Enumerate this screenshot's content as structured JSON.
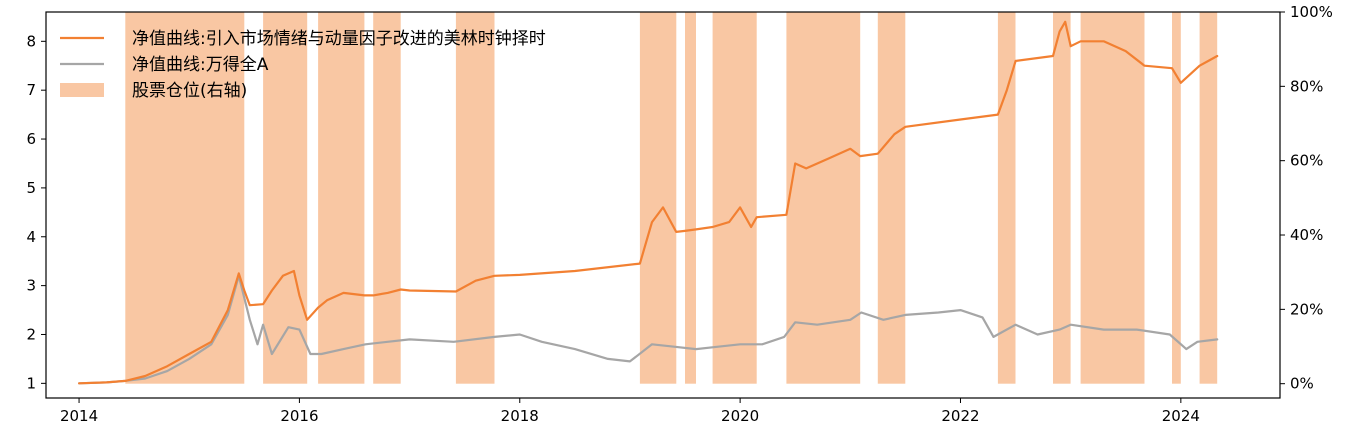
{
  "chart_data": {
    "type": "line",
    "title": "",
    "xlabel": "",
    "ylabel": "",
    "x_range": [
      2013.7,
      2024.9
    ],
    "ylim_left": [
      0.7,
      8.6
    ],
    "ylim_right": [
      -0.0385,
      1.0
    ],
    "x_ticks": [
      {
        "value": 2014,
        "label": "2014"
      },
      {
        "value": 2016,
        "label": "2016"
      },
      {
        "value": 2018,
        "label": "2018"
      },
      {
        "value": 2020,
        "label": "2020"
      },
      {
        "value": 2022,
        "label": "2022"
      },
      {
        "value": 2024,
        "label": "2024"
      }
    ],
    "y_left_ticks": [
      {
        "value": 1,
        "label": "1"
      },
      {
        "value": 2,
        "label": "2"
      },
      {
        "value": 3,
        "label": "3"
      },
      {
        "value": 4,
        "label": "4"
      },
      {
        "value": 5,
        "label": "5"
      },
      {
        "value": 6,
        "label": "6"
      },
      {
        "value": 7,
        "label": "7"
      },
      {
        "value": 8,
        "label": "8"
      }
    ],
    "y_right_ticks": [
      {
        "value": 0,
        "label": "0%"
      },
      {
        "value": 0.2,
        "label": "20%"
      },
      {
        "value": 0.4,
        "label": "40%"
      },
      {
        "value": 0.6,
        "label": "60%"
      },
      {
        "value": 0.8,
        "label": "80%"
      },
      {
        "value": 1.0,
        "label": "100%"
      }
    ],
    "legend": {
      "placement": "top-left",
      "entries": [
        {
          "label": "净值曲线:引入市场情绪与动量因子改进的美林时钟择时",
          "color": "#f28032",
          "kind": "line"
        },
        {
          "label": "净值曲线:万得全A",
          "color": "#a6a6a6",
          "kind": "line"
        },
        {
          "label": "股票仓位(右轴)",
          "color": "#f9c7a3",
          "kind": "patch"
        }
      ]
    },
    "position_bar_color": "#f9c7a3",
    "position_bars": [
      {
        "start": 2014.42,
        "end": 2015.5,
        "value": 1.0
      },
      {
        "start": 2015.67,
        "end": 2016.07,
        "value": 1.0
      },
      {
        "start": 2016.17,
        "end": 2016.59,
        "value": 1.0
      },
      {
        "start": 2016.67,
        "end": 2016.92,
        "value": 1.0
      },
      {
        "start": 2017.42,
        "end": 2017.77,
        "value": 1.0
      },
      {
        "start": 2019.09,
        "end": 2019.42,
        "value": 1.0
      },
      {
        "start": 2019.5,
        "end": 2019.6,
        "value": 1.0
      },
      {
        "start": 2019.75,
        "end": 2020.15,
        "value": 1.0
      },
      {
        "start": 2020.42,
        "end": 2021.09,
        "value": 1.0
      },
      {
        "start": 2021.25,
        "end": 2021.5,
        "value": 1.0
      },
      {
        "start": 2022.34,
        "end": 2022.5,
        "value": 1.0
      },
      {
        "start": 2022.84,
        "end": 2023.0,
        "value": 1.0
      },
      {
        "start": 2023.09,
        "end": 2023.67,
        "value": 1.0
      },
      {
        "start": 2023.92,
        "end": 2024.0,
        "value": 1.0
      },
      {
        "start": 2024.17,
        "end": 2024.33,
        "value": 1.0
      }
    ],
    "series": [
      {
        "name": "净值曲线:引入市场情绪与动量因子改进的美林时钟择时",
        "color": "#f28032",
        "x": [
          2014.0,
          2014.25,
          2014.42,
          2014.6,
          2014.8,
          2015.0,
          2015.2,
          2015.35,
          2015.45,
          2015.5,
          2015.55,
          2015.67,
          2015.75,
          2015.85,
          2015.95,
          2016.0,
          2016.07,
          2016.17,
          2016.25,
          2016.4,
          2016.59,
          2016.67,
          2016.8,
          2016.92,
          2017.0,
          2017.42,
          2017.6,
          2017.77,
          2018.0,
          2018.5,
          2019.09,
          2019.2,
          2019.3,
          2019.42,
          2019.5,
          2019.6,
          2019.75,
          2019.9,
          2020.0,
          2020.1,
          2020.15,
          2020.42,
          2020.5,
          2020.6,
          2020.8,
          2021.0,
          2021.09,
          2021.25,
          2021.4,
          2021.5,
          2022.0,
          2022.34,
          2022.42,
          2022.5,
          2022.84,
          2022.9,
          2022.95,
          2023.0,
          2023.09,
          2023.3,
          2023.5,
          2023.67,
          2023.92,
          2024.0,
          2024.17,
          2024.25,
          2024.33
        ],
        "values": [
          1.0,
          1.02,
          1.05,
          1.15,
          1.35,
          1.6,
          1.85,
          2.5,
          3.25,
          2.9,
          2.6,
          2.62,
          2.9,
          3.2,
          3.3,
          2.8,
          2.3,
          2.55,
          2.7,
          2.85,
          2.8,
          2.8,
          2.85,
          2.92,
          2.9,
          2.88,
          3.1,
          3.2,
          3.22,
          3.3,
          3.45,
          4.3,
          4.6,
          4.1,
          4.12,
          4.15,
          4.2,
          4.3,
          4.6,
          4.2,
          4.4,
          4.45,
          5.5,
          5.4,
          5.6,
          5.8,
          5.65,
          5.7,
          6.1,
          6.25,
          6.4,
          6.5,
          7.0,
          7.6,
          7.7,
          8.2,
          8.4,
          7.9,
          8.0,
          8.0,
          7.8,
          7.5,
          7.45,
          7.15,
          7.5,
          7.6,
          7.7
        ]
      },
      {
        "name": "净值曲线:万得全A",
        "color": "#a6a6a6",
        "x": [
          2014.0,
          2014.25,
          2014.42,
          2014.6,
          2014.8,
          2015.0,
          2015.2,
          2015.35,
          2015.45,
          2015.55,
          2015.62,
          2015.67,
          2015.75,
          2015.9,
          2016.0,
          2016.1,
          2016.2,
          2016.4,
          2016.6,
          2016.8,
          2017.0,
          2017.4,
          2017.77,
          2018.0,
          2018.2,
          2018.5,
          2018.8,
          2019.0,
          2019.2,
          2019.4,
          2019.6,
          2019.8,
          2020.0,
          2020.2,
          2020.4,
          2020.5,
          2020.7,
          2021.0,
          2021.1,
          2021.3,
          2021.5,
          2021.8,
          2022.0,
          2022.2,
          2022.3,
          2022.5,
          2022.7,
          2022.9,
          2023.0,
          2023.3,
          2023.6,
          2023.9,
          2024.05,
          2024.15,
          2024.33
        ],
        "values": [
          1.0,
          1.02,
          1.05,
          1.1,
          1.25,
          1.5,
          1.8,
          2.4,
          3.2,
          2.3,
          1.8,
          2.2,
          1.6,
          2.15,
          2.1,
          1.6,
          1.6,
          1.7,
          1.8,
          1.85,
          1.9,
          1.85,
          1.95,
          2.0,
          1.85,
          1.7,
          1.5,
          1.45,
          1.8,
          1.75,
          1.7,
          1.75,
          1.8,
          1.8,
          1.95,
          2.25,
          2.2,
          2.3,
          2.45,
          2.3,
          2.4,
          2.45,
          2.5,
          2.35,
          1.95,
          2.2,
          2.0,
          2.1,
          2.2,
          2.1,
          2.1,
          2.0,
          1.7,
          1.85,
          1.9
        ]
      }
    ]
  }
}
